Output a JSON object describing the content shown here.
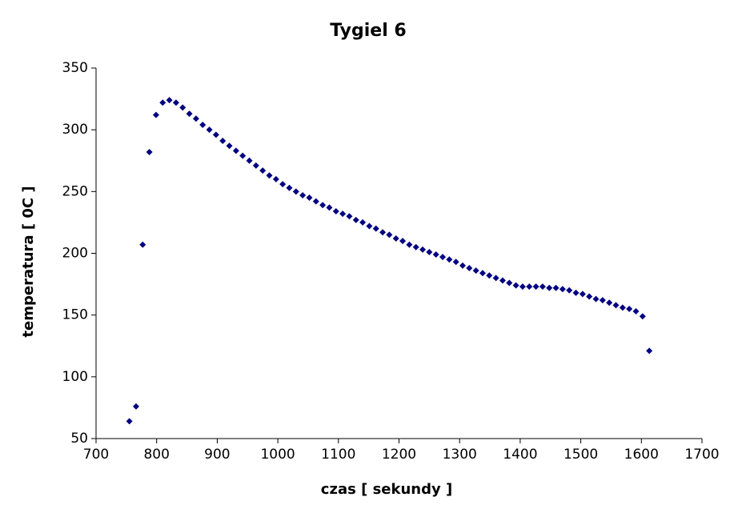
{
  "chart_data": {
    "type": "scatter",
    "title": "Tygiel 6",
    "x_label": "czas [ sekundy ]",
    "y_label": "temperatura [ 0C ]",
    "color": "#000080",
    "xlim": [
      700,
      1700
    ],
    "xticks": [
      700,
      800,
      900,
      1000,
      1100,
      1200,
      1300,
      1400,
      1500,
      1600,
      1700
    ],
    "ylim": [
      50,
      350
    ],
    "yticks": [
      50,
      100,
      150,
      200,
      250,
      300,
      350
    ],
    "grid": false,
    "x": [
      755,
      766,
      777,
      788,
      799,
      810,
      821,
      832,
      843,
      854,
      865,
      876,
      887,
      898,
      909,
      920,
      931,
      942,
      953,
      964,
      975,
      986,
      997,
      1008,
      1019,
      1030,
      1041,
      1052,
      1063,
      1074,
      1085,
      1096,
      1107,
      1118,
      1129,
      1140,
      1151,
      1162,
      1173,
      1184,
      1195,
      1206,
      1217,
      1228,
      1239,
      1250,
      1261,
      1272,
      1283,
      1294,
      1305,
      1316,
      1327,
      1338,
      1349,
      1360,
      1371,
      1382,
      1393,
      1404,
      1415,
      1426,
      1437,
      1448,
      1459,
      1470,
      1481,
      1492,
      1503,
      1514,
      1525,
      1536,
      1547,
      1558,
      1569,
      1580,
      1591,
      1602,
      1613
    ],
    "values": [
      64,
      76,
      207,
      282,
      312,
      322,
      324,
      322,
      318,
      313,
      309,
      304,
      300,
      296,
      291,
      287,
      283,
      279,
      275,
      271,
      267,
      263,
      260,
      256,
      253,
      250,
      247,
      245,
      242,
      239,
      237,
      234,
      232,
      230,
      227,
      225,
      222,
      220,
      217,
      215,
      212,
      210,
      207,
      205,
      203,
      201,
      199,
      197,
      195,
      193,
      190,
      188,
      186,
      184,
      182,
      180,
      178,
      176,
      174,
      173,
      173,
      173,
      173,
      172,
      172,
      171,
      170,
      168,
      167,
      165,
      163,
      162,
      160,
      158,
      156,
      155,
      153,
      149,
      121
    ]
  }
}
